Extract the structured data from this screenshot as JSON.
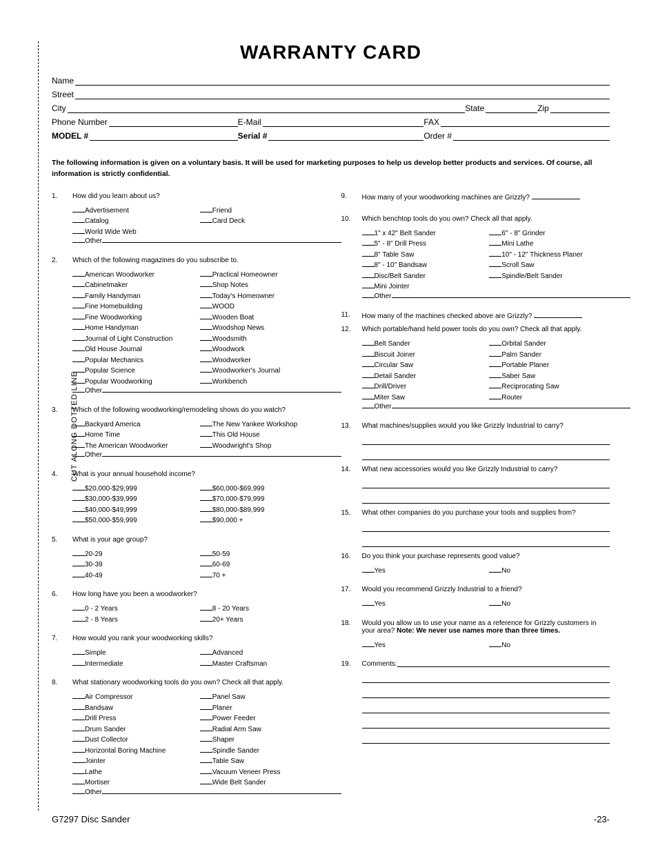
{
  "title": "WARRANTY CARD",
  "cut_label": "CUT ALONG DOTTED LINE",
  "info": {
    "name": "Name",
    "street": "Street",
    "city": "City",
    "state": "State",
    "zip": "Zip",
    "phone": "Phone Number",
    "email": "E-Mail",
    "fax": "FAX",
    "model": "MODEL #",
    "serial": "Serial #",
    "order": "Order #"
  },
  "disclaimer": "The following information is given on a voluntary basis. It will be used for marketing purposes to help us develop better products and services. Of course, all information is strictly confidential.",
  "other_label": "Other",
  "yes": "Yes",
  "no": "No",
  "q1": {
    "num": "1.",
    "text": "How did you learn about us?",
    "col1": [
      "Advertisement",
      "Catalog",
      "World Wide Web"
    ],
    "col2": [
      "Friend",
      "Card Deck"
    ]
  },
  "q2": {
    "num": "2.",
    "text": "Which of the following magazines do you subscribe to.",
    "col1": [
      "American Woodworker",
      "Cabinetmaker",
      "Family Handyman",
      "Fine Homebuilding",
      "Fine Woodworking",
      "Home Handyman",
      "Journal of Light Construction",
      "Old House Journal",
      "Popular Mechanics",
      "Popular Science",
      "Popular Woodworking"
    ],
    "col2": [
      "Practical Homeowner",
      "Shop Notes",
      "Today's Homeowner",
      "WOOD",
      "Wooden Boat",
      "Woodshop News",
      "Woodsmith",
      "Woodwork",
      "Woodworker",
      "Woodworker's Journal",
      "Workbench"
    ]
  },
  "q3": {
    "num": "3.",
    "text": "Which of the following woodworking/remodeling shows do you watch?",
    "col1": [
      "Backyard America",
      "Home Time",
      "The American Woodworker"
    ],
    "col2": [
      "The New Yankee Workshop",
      "This Old House",
      "Woodwright's Shop"
    ]
  },
  "q4": {
    "num": "4.",
    "text": "What is your annual household income?",
    "col1": [
      "$20,000-$29,999",
      "$30,000-$39,999",
      "$40,000-$49,999",
      "$50,000-$59,999"
    ],
    "col2": [
      "$60,000-$69,999",
      "$70,000-$79,999",
      "$80,000-$89,999",
      "$90,000 +"
    ]
  },
  "q5": {
    "num": "5.",
    "text": "What is your age group?",
    "col1": [
      "20-29",
      "30-39",
      "40-49"
    ],
    "col2": [
      "50-59",
      "60-69",
      "70 +"
    ]
  },
  "q6": {
    "num": "6.",
    "text": "How long have you been a woodworker?",
    "col1": [
      "0 - 2 Years",
      "2 - 8 Years"
    ],
    "col2": [
      "8 - 20 Years",
      "20+ Years"
    ]
  },
  "q7": {
    "num": "7.",
    "text": "How would you rank your woodworking skills?",
    "col1": [
      "Simple",
      "Intermediate"
    ],
    "col2": [
      "Advanced",
      "Master Craftsman"
    ]
  },
  "q8": {
    "num": "8.",
    "text": "What stationary woodworking tools do you own? Check all that apply.",
    "col1": [
      "Air Compressor",
      "Bandsaw",
      "Drill Press",
      "Drum Sander",
      "Dust Collector",
      "Horizontal Boring Machine",
      "Jointer",
      "Lathe",
      "Mortiser"
    ],
    "col2": [
      "Panel Saw",
      "Planer",
      "Power Feeder",
      "Radial Arm Saw",
      "Shaper",
      "Spindle Sander",
      "Table Saw",
      "Vacuum Veneer Press",
      "Wide Belt Sander"
    ]
  },
  "q9": {
    "num": "9.",
    "text": "How many of your woodworking machines are Grizzly? "
  },
  "q10": {
    "num": "10.",
    "text": "Which benchtop tools do you own? Check all that apply.",
    "col1": [
      "1\" x 42\" Belt Sander",
      "5\" - 8\" Drill Press",
      "8\" Table Saw",
      "8\" - 10\" Bandsaw",
      "Disc/Belt Sander",
      "Mini Jointer"
    ],
    "col2": [
      "6\" - 8\" Grinder",
      "Mini Lathe",
      "10\" - 12\" Thickness Planer",
      "Scroll Saw",
      "Spindle/Belt Sander"
    ]
  },
  "q11": {
    "num": "11.",
    "text": "How many of the machines checked above are Grizzly? "
  },
  "q12": {
    "num": "12.",
    "text": "Which portable/hand held power tools do you own? Check all that apply.",
    "col1": [
      "Belt Sander",
      "Biscuit Joiner",
      "Circular Saw",
      "Detail Sander",
      "Drill/Driver",
      "Miter Saw"
    ],
    "col2": [
      "Orbital Sander",
      "Palm Sander",
      "Portable Planer",
      "Saber Saw",
      "Reciprocating Saw",
      "Router"
    ]
  },
  "q13": {
    "num": "13.",
    "text": "What machines/supplies would you like Grizzly Industrial to carry?"
  },
  "q14": {
    "num": "14.",
    "text": "What new accessories would you like Grizzly Industrial to carry?"
  },
  "q15": {
    "num": "15.",
    "text": "What other companies do you purchase your tools and supplies from?"
  },
  "q16": {
    "num": "16.",
    "text": "Do you think your purchase represents good value?"
  },
  "q17": {
    "num": "17.",
    "text": "Would you recommend Grizzly Industrial to a friend?"
  },
  "q18": {
    "num": "18.",
    "text": "Would you allow us to use your name as a reference for Grizzly customers in your area? ",
    "note": "Note: We never use names more than three times."
  },
  "q19": {
    "num": "19.",
    "text": "Comments:"
  },
  "footer": {
    "left": "G7297 Disc Sander",
    "right": "-23-"
  }
}
